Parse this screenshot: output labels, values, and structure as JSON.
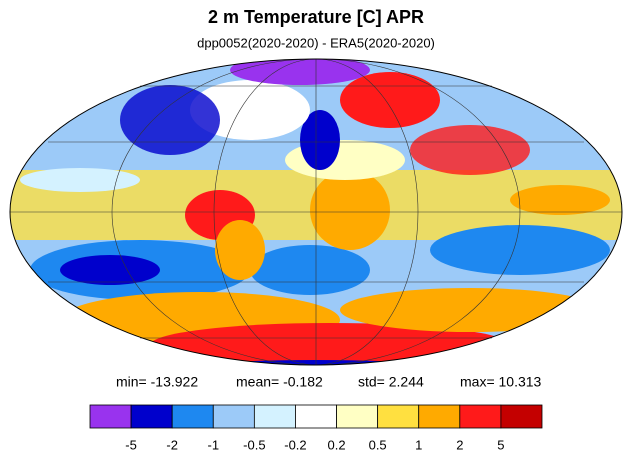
{
  "header": {
    "title": "2 m Temperature [C] APR",
    "subtitle": "dpp0052(2020-2020) - ERA5(2020-2020)"
  },
  "stats": [
    "min= -13.922",
    "mean= -0.182",
    "std= 2.244",
    "max= 10.313"
  ],
  "colorbar": {
    "colors": [
      "#9933ee",
      "#0000cc",
      "#1e88f0",
      "#9ccaf8",
      "#d4f2ff",
      "#ffffff",
      "#ffffc4",
      "#ffe040",
      "#ffaa00",
      "#ff1a1a",
      "#c40000"
    ],
    "levels": [
      -5,
      -2,
      -1,
      -0.5,
      -0.2,
      0.2,
      0.5,
      1,
      2,
      5
    ]
  }
}
